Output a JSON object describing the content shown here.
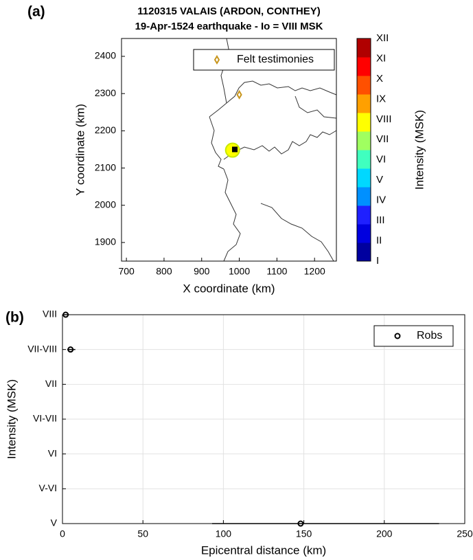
{
  "chart_data": [
    {
      "type": "scatter",
      "panel_label": "(a)",
      "title": "1120315 VALAIS (ARDON, CONTHEY)",
      "subtitle": "19-Apr-1524 earthquake - Io = VIII MSK",
      "xlabel": "X coordinate (km)",
      "ylabel": "Y coordinate (km)",
      "xlim": [
        687,
        1258
      ],
      "xticks": [
        700,
        800,
        900,
        1000,
        1100,
        1200
      ],
      "ylim": [
        1850,
        2448
      ],
      "yticks": [
        1900,
        2000,
        2100,
        2200,
        2300,
        2400
      ],
      "series": [
        {
          "name": "Felt testimonies",
          "color": "#c8961e",
          "x": [
            1000
          ],
          "y": [
            2297
          ]
        }
      ],
      "intensity_points": {
        "x": [
          982
        ],
        "y": [
          2148
        ],
        "intensity": [
          8
        ]
      },
      "epicenter": {
        "x": [
          988
        ],
        "y": [
          2150
        ],
        "color": "#000000"
      },
      "legend": "upper right",
      "colorbar": {
        "label": "Intensity (MSK)",
        "categories": [
          "I",
          "II",
          "III",
          "IV",
          "V",
          "VI",
          "VII",
          "VIII",
          "IX",
          "X",
          "XI",
          "XII"
        ],
        "colors": [
          "#00009f",
          "#0000df",
          "#1f20ff",
          "#0090ff",
          "#00d8ff",
          "#40ffbf",
          "#a0ff60",
          "#ffff00",
          "#ffa000",
          "#ff5000",
          "#ff0000",
          "#b00000"
        ]
      }
    },
    {
      "type": "scatter",
      "panel_label": "(b)",
      "xlabel": "Epicentral distance (km)",
      "ylabel": "Intensity (MSK)",
      "xlim": [
        0,
        250
      ],
      "xticks": [
        0,
        50,
        100,
        150,
        200,
        250
      ],
      "ylim": [
        5,
        8
      ],
      "yticks": [
        {
          "value": 5,
          "label": "V"
        },
        {
          "value": 5.5,
          "label": "V-VI"
        },
        {
          "value": 6,
          "label": "VI"
        },
        {
          "value": 6.5,
          "label": "VI-VII"
        },
        {
          "value": 7,
          "label": "VII"
        },
        {
          "value": 7.5,
          "label": "VII-VIII"
        },
        {
          "value": 8,
          "label": "VIII"
        }
      ],
      "grid": true,
      "legend": "upper right",
      "series": [
        {
          "name": "Robs",
          "color": "#000000",
          "x": [
            2,
            5,
            148
          ],
          "y": [
            8,
            7.5,
            5
          ],
          "x_lower": [
            1,
            3,
            93
          ],
          "x_upper": [
            4,
            8,
            234
          ]
        }
      ]
    }
  ]
}
